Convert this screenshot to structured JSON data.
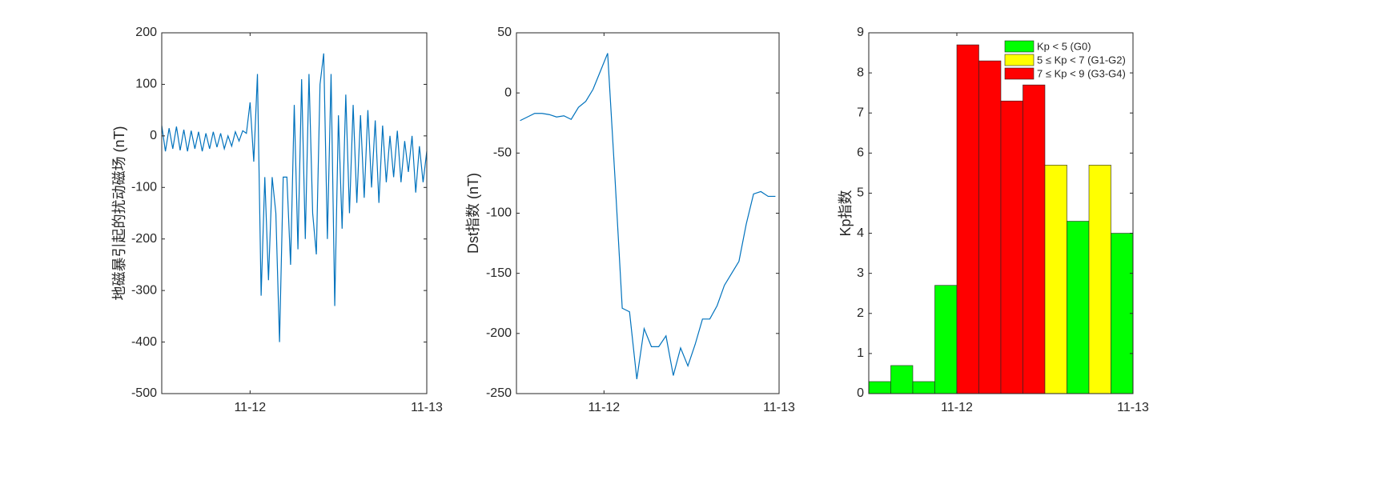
{
  "chart_data": [
    {
      "type": "line",
      "ylabel": "地磁暴引起的扰动磁场 (nT)",
      "color": "#0072bd",
      "xlim": [
        -12,
        24
      ],
      "xticks": [
        {
          "value": 0,
          "label": "11-12"
        },
        {
          "value": 24,
          "label": "11-13"
        }
      ],
      "ylim": [
        -500,
        200
      ],
      "yticks": [
        -500,
        -400,
        -300,
        -200,
        -100,
        0,
        100,
        200
      ],
      "x": [
        -12,
        -11.5,
        -11,
        -10.5,
        -10,
        -9.5,
        -9,
        -8.5,
        -8,
        -7.5,
        -7,
        -6.5,
        -6,
        -5.5,
        -5,
        -4.5,
        -4,
        -3.5,
        -3,
        -2.5,
        -2,
        -1.5,
        -1,
        -0.5,
        0,
        0.5,
        1,
        1.5,
        2,
        2.5,
        3,
        3.5,
        4,
        4.5,
        5,
        5.5,
        6,
        6.5,
        7,
        7.5,
        8,
        8.5,
        9,
        9.5,
        10,
        10.5,
        11,
        11.5,
        12,
        12.5,
        13,
        13.5,
        14,
        14.5,
        15,
        15.5,
        16,
        16.5,
        17,
        17.5,
        18,
        18.5,
        19,
        19.5,
        20,
        20.5,
        21,
        21.5,
        22,
        22.5,
        23,
        23.5,
        24
      ],
      "values": [
        20,
        -30,
        15,
        -25,
        18,
        -28,
        12,
        -30,
        10,
        -25,
        8,
        -30,
        5,
        -25,
        8,
        -22,
        5,
        -25,
        0,
        -20,
        8,
        -10,
        10,
        5,
        65,
        -50,
        120,
        -310,
        -80,
        -280,
        -80,
        -150,
        -400,
        -80,
        -80,
        -250,
        60,
        -220,
        110,
        -200,
        120,
        -150,
        -230,
        100,
        160,
        -200,
        120,
        -330,
        40,
        -180,
        80,
        -150,
        60,
        -130,
        40,
        -120,
        50,
        -100,
        30,
        -130,
        20,
        -90,
        0,
        -80,
        10,
        -90,
        -10,
        -70,
        0,
        -110,
        -20,
        -90,
        -30
      ]
    },
    {
      "type": "line",
      "ylabel": "Dst指数 (nT)",
      "color": "#0072bd",
      "xlim": [
        -12,
        24
      ],
      "xticks": [
        {
          "value": 0,
          "label": "11-12"
        },
        {
          "value": 24,
          "label": "11-13"
        }
      ],
      "ylim": [
        -250,
        50
      ],
      "yticks": [
        -250,
        -200,
        -150,
        -100,
        -50,
        0,
        50
      ],
      "x": [
        -11.5,
        -10.5,
        -9.5,
        -8.5,
        -7.5,
        -6.5,
        -5.5,
        -4.5,
        -3.5,
        -2.5,
        -1.5,
        -0.5,
        0.5,
        1.5,
        2.5,
        3.5,
        4.5,
        5.5,
        6.5,
        7.5,
        8.5,
        9.5,
        10.5,
        11.5,
        12.5,
        13.5,
        14.5,
        15.5,
        16.5,
        17.5,
        18.5,
        19.5,
        20.5,
        21.5,
        22.5,
        23.5
      ],
      "values": [
        -23,
        -20,
        -17,
        -17,
        -18,
        -20,
        -19,
        -22,
        -12,
        -7,
        3,
        18,
        33,
        -70,
        -179,
        -182,
        -238,
        -196,
        -211,
        -211,
        -202,
        -235,
        -212,
        -227,
        -209,
        -188,
        -188,
        -177,
        -160,
        -150,
        -140,
        -109,
        -84,
        -82,
        -86,
        -86
      ]
    },
    {
      "type": "histogram",
      "ylabel": "Kp指数",
      "xlim": [
        -12,
        24
      ],
      "xticks": [
        {
          "value": 0,
          "label": "11-12"
        },
        {
          "value": 24,
          "label": "11-13"
        }
      ],
      "ylim": [
        0,
        9
      ],
      "yticks": [
        0,
        1,
        2,
        3,
        4,
        5,
        6,
        7,
        8,
        9
      ],
      "bins": [
        -12,
        -9,
        -6,
        -3,
        0,
        3,
        6,
        9,
        12,
        15,
        18,
        21,
        24
      ],
      "values": [
        0.3,
        0.7,
        0.3,
        2.7,
        8.7,
        8.3,
        7.3,
        7.7,
        5.7,
        4.3,
        5.7,
        4.0
      ],
      "colors": [
        "#00ff00",
        "#00ff00",
        "#00ff00",
        "#00ff00",
        "#ff0000",
        "#ff0000",
        "#ff0000",
        "#ff0000",
        "#ffff00",
        "#00ff00",
        "#ffff00",
        "#00ff00"
      ],
      "legend_position": "northeast",
      "legend": [
        {
          "name": "Kp < 5 (G0)",
          "color": "#00ff00"
        },
        {
          "name": "5 ≤ Kp < 7 (G1-G2)",
          "color": "#ffff00"
        },
        {
          "name": "7 ≤ Kp < 9 (G3-G4)",
          "color": "#ff0000"
        }
      ]
    }
  ]
}
